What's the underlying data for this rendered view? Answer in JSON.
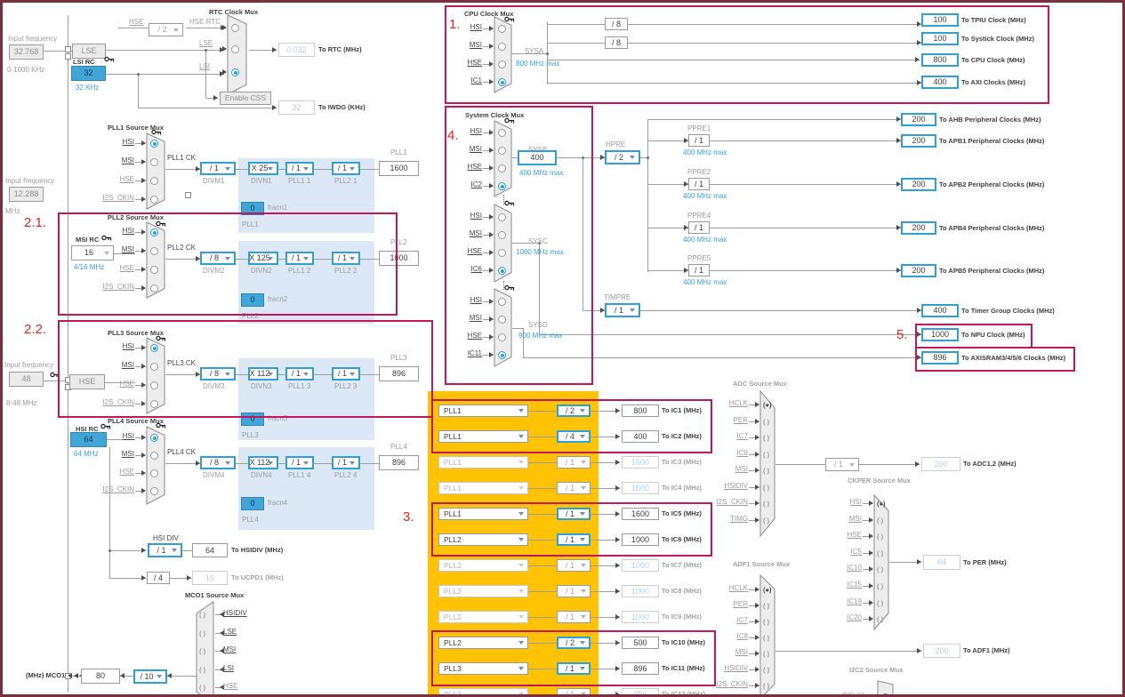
{
  "annotations": {
    "one": "1.",
    "two_one": "2.1.",
    "two_two": "2.2.",
    "three": "3.",
    "four": "4.",
    "five": "5."
  },
  "osc": {
    "lse_input_label": "Input frequency",
    "lse_input_value": "32.768",
    "lse_input_range": "0-1000 KHz",
    "i2s_input_label": "Input frequency",
    "i2s_input_value": "12.288",
    "i2s_input_range": "MHz",
    "hse_input_label": "Input frequency",
    "hse_input_value": "48",
    "hse_input_range": "8-48 MHz",
    "lse_label": "LSE",
    "lsi_rc_label": "LSI RC",
    "lsi_value": "32",
    "lsi_freq": "32 KHz",
    "hse_label": "HSE",
    "hsi_rc_label": "HSI RC",
    "hsi_value": "64",
    "hsi_freq": "64 MHz",
    "msi_rc_label": "MSI RC",
    "msi_value": "16",
    "msi_freq": "4/16 MHz"
  },
  "rtc": {
    "title": "RTC Clock Mux",
    "hse_label": "HSE",
    "hse_div": "/ 2",
    "hse_rtc_label": "HSE RTC",
    "lse_label": "LSE",
    "lsi_label": "LSI",
    "css_label": "Enable CSS",
    "rtc_value": "0.032",
    "rtc_out_label": "To RTC (MHz)",
    "iwdg_value": "32",
    "iwdg_out_label": "To IWDG (KHz)"
  },
  "plls": [
    {
      "title": "PLL1 Source Mux",
      "ck_label": "PLL1 CK",
      "divm": "/ 1",
      "divm_label": "DIVM1",
      "divn": "X 25",
      "divn_label": "DIVN1",
      "p1": "/ 1",
      "p1_label": "PLL1 1",
      "p2": "/ 1",
      "p2_label": "PLL2 1",
      "out_label": "PLL1",
      "out_value": "1600",
      "fracn_value": "0",
      "fracn_label": "fracn1",
      "fracn_sub": "PLL1"
    },
    {
      "title": "PLL2 Source Mux",
      "ck_label": "PLL2 CK",
      "divm": "/ 8",
      "divm_label": "DIVM2",
      "divn": "X 125",
      "divn_label": "DIVN2",
      "p1": "/ 1",
      "p1_label": "PLL1 2",
      "p2": "/ 1",
      "p2_label": "PLL2 2",
      "out_label": "PLL2",
      "out_value": "1000",
      "fracn_value": "0",
      "fracn_label": "fracn2",
      "fracn_sub": "PLL2"
    },
    {
      "title": "PLL3 Source Mux",
      "ck_label": "PLL3 CK",
      "divm": "/ 8",
      "divm_label": "DIVM3",
      "divn": "X 112",
      "divn_label": "DIVN3",
      "p1": "/ 1",
      "p1_label": "PLL1 3",
      "p2": "/ 1",
      "p2_label": "PLL2 3",
      "out_label": "PLL3",
      "out_value": "896",
      "fracn_value": "0",
      "fracn_label": "fracn3",
      "fracn_sub": "PLL3"
    },
    {
      "title": "PLL4 Source Mux",
      "ck_label": "PLL4 CK",
      "divm": "/ 8",
      "divm_label": "DIVM4",
      "divn": "X 112",
      "divn_label": "DIVN4",
      "p1": "/ 1",
      "p1_label": "PLL1 4",
      "p2": "/ 1",
      "p2_label": "PLL2 4",
      "out_label": "PLL4",
      "out_value": "896",
      "fracn_value": "0",
      "fracn_label": "fracn4",
      "fracn_sub": "PLL4"
    }
  ],
  "muxes": {
    "rtc": {
      "inputs": [
        {
          "label": ""
        },
        {
          "label": ""
        },
        {
          "label": "",
          "sel": true
        }
      ]
    },
    "pll1": {
      "inputs": [
        {
          "label": "HSI",
          "sel": true,
          "t": "d"
        },
        {
          "label": "MSI",
          "t": "d"
        },
        {
          "label": "HSE",
          "t": "g"
        },
        {
          "label": "I2S_CKIN",
          "t": "g"
        }
      ]
    },
    "pll2": {
      "inputs": [
        {
          "label": "HSI",
          "sel": true,
          "t": "d"
        },
        {
          "label": "MSI",
          "t": "d"
        },
        {
          "label": "HSE",
          "t": "g"
        },
        {
          "label": "I2S_CKIN",
          "t": "g"
        }
      ]
    },
    "pll3": {
      "inputs": [
        {
          "label": "HSI",
          "sel": true,
          "t": "d"
        },
        {
          "label": "MSI",
          "t": "d"
        },
        {
          "label": "HSE",
          "t": "g"
        },
        {
          "label": "I2S_CKIN",
          "t": "g"
        }
      ]
    },
    "pll4": {
      "inputs": [
        {
          "label": "HSI",
          "sel": true,
          "t": "d"
        },
        {
          "label": "MSI",
          "t": "d"
        },
        {
          "label": "HSE",
          "t": "g"
        },
        {
          "label": "I2S_CKIN",
          "t": "g"
        }
      ]
    },
    "cpu": {
      "inputs": [
        {
          "label": "HSI",
          "t": "d"
        },
        {
          "label": "MSI",
          "t": "d"
        },
        {
          "label": "HSE",
          "t": "d"
        },
        {
          "label": "IC1",
          "sel": true,
          "t": "d"
        }
      ]
    },
    "sysb": {
      "inputs": [
        {
          "label": "HSI",
          "t": "d"
        },
        {
          "label": "MSI",
          "t": "d"
        },
        {
          "label": "HSE",
          "t": "d"
        },
        {
          "label": "IC2",
          "sel": true,
          "t": "d"
        }
      ]
    },
    "sysc": {
      "inputs": [
        {
          "label": "HSI",
          "t": "d"
        },
        {
          "label": "MSI",
          "t": "d"
        },
        {
          "label": "HSE",
          "t": "d"
        },
        {
          "label": "IC6",
          "sel": true,
          "t": "d"
        }
      ]
    },
    "sysd": {
      "inputs": [
        {
          "label": "HSI",
          "t": "d"
        },
        {
          "label": "MSI",
          "t": "d"
        },
        {
          "label": "HSE",
          "t": "d"
        },
        {
          "label": "IC11",
          "sel": true,
          "t": "d"
        }
      ]
    },
    "mco1": {
      "inputs": [
        {
          "label": "HSIDIV",
          "t": "d"
        },
        {
          "label": "LSE",
          "t": "d"
        },
        {
          "label": "MSI",
          "t": "d"
        },
        {
          "label": "LSI",
          "t": "d"
        },
        {
          "label": "HSE",
          "t": "g"
        },
        {
          "label": "IC5",
          "t": "d"
        }
      ]
    },
    "adc": {
      "inputs": [
        {
          "label": "HCLK",
          "sel": true,
          "t": "g"
        },
        {
          "label": "PER",
          "t": "g"
        },
        {
          "label": "IC7",
          "t": "g"
        },
        {
          "label": "IC8",
          "t": "g"
        },
        {
          "label": "MSI",
          "t": "g"
        },
        {
          "label": "HSIDIV",
          "t": "g"
        },
        {
          "label": "I2S_CKIN",
          "t": "g"
        },
        {
          "label": "TIMG",
          "t": "g"
        }
      ]
    },
    "ckper": {
      "inputs": [
        {
          "label": "HSI",
          "sel": true,
          "t": "g"
        },
        {
          "label": "MSI",
          "t": "g"
        },
        {
          "label": "HSE",
          "t": "g"
        },
        {
          "label": "IC5",
          "t": "g"
        },
        {
          "label": "IC10",
          "t": "g"
        },
        {
          "label": "IC15",
          "t": "g"
        },
        {
          "label": "IC19",
          "t": "g"
        },
        {
          "label": "IC20",
          "t": "g"
        }
      ]
    },
    "adf1": {
      "inputs": [
        {
          "label": "HCLK",
          "sel": true,
          "t": "g"
        },
        {
          "label": "PER",
          "t": "g"
        },
        {
          "label": "IC7",
          "t": "g"
        },
        {
          "label": "IC8",
          "t": "g"
        },
        {
          "label": "MSI",
          "t": "g"
        },
        {
          "label": "HSIDIV",
          "t": "g"
        },
        {
          "label": "I2S_CKIN",
          "t": "g"
        }
      ]
    },
    "i2c2": {
      "inputs": [
        {
          "label": "PCLK1",
          "sel": true,
          "t": "g"
        }
      ]
    }
  },
  "cpu": {
    "title": "CPU Clock Mux",
    "sys_label": "SYSA",
    "max_label": "800 MHz max",
    "div1": "/ 8",
    "div2": "/ 8",
    "outputs": [
      {
        "value": "100",
        "label": "To TPIU Clock (MHz)"
      },
      {
        "value": "100",
        "label": "To Systick Clock (MHz)"
      },
      {
        "value": "800",
        "label": "To CPU Clock (MHz)"
      },
      {
        "value": "400",
        "label": "To AXI Clocks (MHz)"
      }
    ]
  },
  "system": {
    "title": "System Clock Mux",
    "sysb_label": "SYSB",
    "sysb_value": "400",
    "sysb_max": "400 MHz max",
    "sysc_label": "SYSC",
    "sysc_max": "1000 MHz max",
    "sysd_label": "SYSD",
    "sysd_max": "900 MHz max",
    "hpre_label": "HPRE",
    "hpre_value": "/ 2",
    "timpre_label": "TIMPRE",
    "timpre_value": "/ 1"
  },
  "bus": {
    "ahb": {
      "value": "200",
      "label": "To AHB Peripheral Clocks (MHz)"
    },
    "ppre": [
      {
        "name": "PPRE1",
        "div": "/ 1",
        "max": "400 MHz max",
        "value": "200",
        "label": "To APB1 Peripheral Clocks (MHz)"
      },
      {
        "name": "PPRE2",
        "div": "/ 1",
        "max": "400 MHz max",
        "value": "200",
        "label": "To APB2 Peripheral Clocks (MHz)"
      },
      {
        "name": "PPRE4",
        "div": "/ 1",
        "max": "400 MHz max",
        "value": "200",
        "label": "To APB4 Peripheral Clocks (MHz)"
      },
      {
        "name": "PPRE5",
        "div": "/ 1",
        "max": "400 MHz max",
        "value": "200",
        "label": "To APB5 Peripheral Clocks (MHz)"
      }
    ],
    "timer": {
      "value": "400",
      "label": "To Timer Group Clocks (MHz)"
    },
    "npu": {
      "value": "1000",
      "label": "To NPU Clock (MHz)"
    },
    "axisram": {
      "value": "896",
      "label": "To AXISRAM3/4/5/6 Clocks (MHz)"
    }
  },
  "hsidiv": {
    "title": "HSI DIV",
    "div": "/ 1",
    "value": "64",
    "label": "To HSIDIV (MHz)"
  },
  "ucpd": {
    "div": "/ 4",
    "value": "16",
    "label": "To UCPD1 (MHz)"
  },
  "mco1": {
    "title": "MCO1 Source Mux",
    "div": "/ 10",
    "value": "80",
    "label": "(MHz) MCO1"
  },
  "ic_rows": [
    {
      "source": "PLL1",
      "div": "/ 2",
      "value": "800",
      "label": "To IC1 (MHz)",
      "active": true
    },
    {
      "source": "PLL1",
      "div": "/ 4",
      "value": "400",
      "label": "To IC2 (MHz)",
      "active": true
    },
    {
      "source": "PLL1",
      "div": "/ 1",
      "value": "1600",
      "label": "To IC3 (MHz)",
      "active": false
    },
    {
      "source": "PLL1",
      "div": "/ 1",
      "value": "1600",
      "label": "To IC4 (MHz)",
      "active": false
    },
    {
      "source": "PLL1",
      "div": "/ 1",
      "value": "1600",
      "label": "To IC5 (MHz)",
      "active": true
    },
    {
      "source": "PLL2",
      "div": "/ 1",
      "value": "1000",
      "label": "To IC6 (MHz)",
      "active": true
    },
    {
      "source": "PLL2",
      "div": "/ 1",
      "value": "1000",
      "label": "To IC7 (MHz)",
      "active": false
    },
    {
      "source": "PLL2",
      "div": "/ 1",
      "value": "1000",
      "label": "To IC8 (MHz)",
      "active": false
    },
    {
      "source": "PLL2",
      "div": "/ 1",
      "value": "1000",
      "label": "To IC9 (MHz)",
      "active": false
    },
    {
      "source": "PLL2",
      "div": "/ 2",
      "value": "500",
      "label": "To IC10 (MHz)",
      "active": true
    },
    {
      "source": "PLL3",
      "div": "/ 1",
      "value": "896",
      "label": "To IC11 (MHz)",
      "active": true
    },
    {
      "source": "PLL3",
      "div": "/ 1",
      "value": "896",
      "label": "To IC12 (MHz)",
      "active": false
    }
  ],
  "adc": {
    "title": "ADC Source Mux",
    "div": "/ 1",
    "value": "200",
    "label": "To ADC1,2 (MHz)"
  },
  "ckper": {
    "title": "CKPER Source Mux",
    "value": "64",
    "label": "To PER (MHz)"
  },
  "adf1": {
    "title": "ADF1 Source Mux",
    "value": "200",
    "label": "To ADF1 (MHz)"
  },
  "i2c2": {
    "title": "I2C2 Source Mux"
  }
}
